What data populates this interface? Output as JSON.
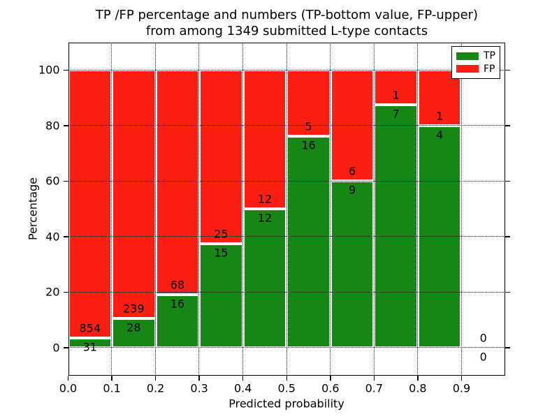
{
  "figure": {
    "title_line1": "TP /FP percentage and numbers (TP-bottom value, FP-upper)",
    "title_line2": "from among 1349 submitted L-type contacts",
    "xlabel": "Predicted probability",
    "ylabel": "Percentage"
  },
  "legend": {
    "items": [
      {
        "label": "TP",
        "color": "#168716"
      },
      {
        "label": "FP",
        "color": "#fa1e13"
      }
    ]
  },
  "chart_data": {
    "type": "bar",
    "stacked": true,
    "normalized_to_percent": true,
    "title": "TP /FP percentage and numbers (TP-bottom value, FP-upper) from among 1349 submitted L-type contacts",
    "xlabel": "Predicted probability",
    "ylabel": "Percentage",
    "total_contacts": 1349,
    "bin_width": 0.1,
    "bin_starts": [
      0.0,
      0.1,
      0.2,
      0.3,
      0.4,
      0.5,
      0.6,
      0.7,
      0.8,
      0.9
    ],
    "series": [
      {
        "name": "TP",
        "color": "#168716",
        "counts": [
          31,
          28,
          16,
          15,
          12,
          16,
          9,
          7,
          4,
          0
        ]
      },
      {
        "name": "FP",
        "color": "#fa1e13",
        "counts": [
          854,
          239,
          68,
          25,
          12,
          5,
          6,
          1,
          1,
          0
        ]
      }
    ],
    "tp_percent_heights": [
      3.5,
      10.49,
      19.05,
      37.5,
      50.0,
      76.19,
      60.0,
      87.5,
      80.0,
      0.0
    ],
    "xlim": [
      0.0,
      1.0
    ],
    "ylim": [
      -10,
      110
    ],
    "xticks": [
      "0.0",
      "0.1",
      "0.2",
      "0.3",
      "0.4",
      "0.5",
      "0.6",
      "0.7",
      "0.8",
      "0.9"
    ],
    "yticks": [
      "0",
      "20",
      "40",
      "60",
      "80",
      "100"
    ],
    "grid": "dotted both axes",
    "bar_edge_color": "#ffffff",
    "legend_position": "upper right"
  }
}
